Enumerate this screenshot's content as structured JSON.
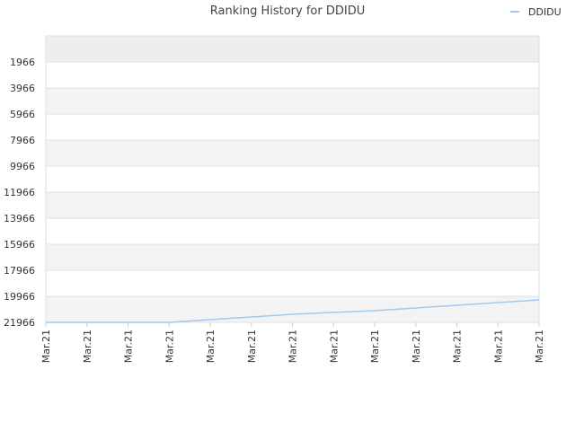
{
  "chart_data": {
    "type": "line",
    "title": "Ranking History for DDIDU",
    "categories": [
      "Mar.21",
      "Mar.21",
      "Mar.21",
      "Mar.21",
      "Mar.21",
      "Mar.21",
      "Mar.21",
      "Mar.21",
      "Mar.21",
      "Mar.21",
      "Mar.21",
      "Mar.21",
      "Mar.21"
    ],
    "series": [
      {
        "name": "DDIDU",
        "color": "#a3c8f0",
        "values": [
          21966,
          21966,
          21966,
          21966,
          21760,
          21550,
          21345,
          21200,
          21070,
          20860,
          20655,
          20450,
          20242
        ]
      }
    ],
    "ylim": [
      21966,
      -34
    ],
    "yticks": [
      1966,
      3966,
      5966,
      7966,
      9966,
      11966,
      13966,
      15966,
      17966,
      19966,
      21966
    ],
    "grid": true,
    "legend": "top-right"
  }
}
